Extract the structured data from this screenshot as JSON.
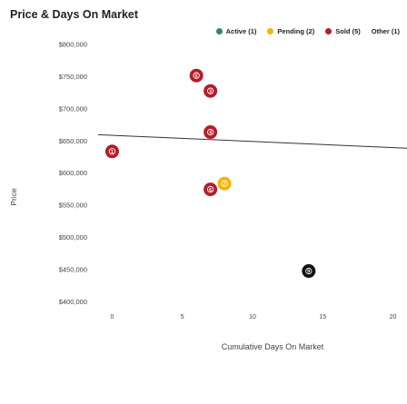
{
  "chart_data": {
    "type": "scatter",
    "title": "Price & Days On Market",
    "xlabel": "Cumulative Days On Market",
    "ylabel": "Price",
    "xlim": [
      -1,
      21
    ],
    "ylim": [
      380000,
      812000
    ],
    "x_ticks": [
      0,
      5,
      10,
      15,
      20
    ],
    "y_ticks": [
      800000,
      750000,
      700000,
      650000,
      600000,
      550000,
      500000,
      450000,
      400000
    ],
    "y_tick_labels": [
      "$800,000",
      "$750,000",
      "$700,000",
      "$650,000",
      "$600,000",
      "$550,000",
      "$500,000",
      "$450,000",
      "$400,000"
    ],
    "legend": [
      {
        "label": "Active (1)",
        "color": "#2e8b57"
      },
      {
        "label": "Pending (2)",
        "color": "#f6b400"
      },
      {
        "label": "Sold (5)",
        "color": "#b71c2a"
      },
      {
        "label": "Other (1)",
        "color": ""
      }
    ],
    "points": [
      {
        "x": 0,
        "y": 633000,
        "label": "1",
        "color": "#b71c2a"
      },
      {
        "x": 6,
        "y": 751000,
        "label": "5",
        "color": "#b71c2a"
      },
      {
        "x": 7,
        "y": 727000,
        "label": "3",
        "color": "#b71c2a"
      },
      {
        "x": 7,
        "y": 663000,
        "label": "4",
        "color": "#b71c2a"
      },
      {
        "x": 8,
        "y": 583000,
        "label": "7",
        "color": "#f6b400"
      },
      {
        "x": 7,
        "y": 574000,
        "label": "6",
        "color": "#b71c2a"
      },
      {
        "x": 14,
        "y": 447000,
        "label": "9",
        "color": "#111111"
      }
    ],
    "trendline": {
      "x": [
        -1,
        21
      ],
      "y": [
        659000,
        638000
      ],
      "color": "#333333"
    },
    "grid": false,
    "legend_position": "top-right"
  }
}
